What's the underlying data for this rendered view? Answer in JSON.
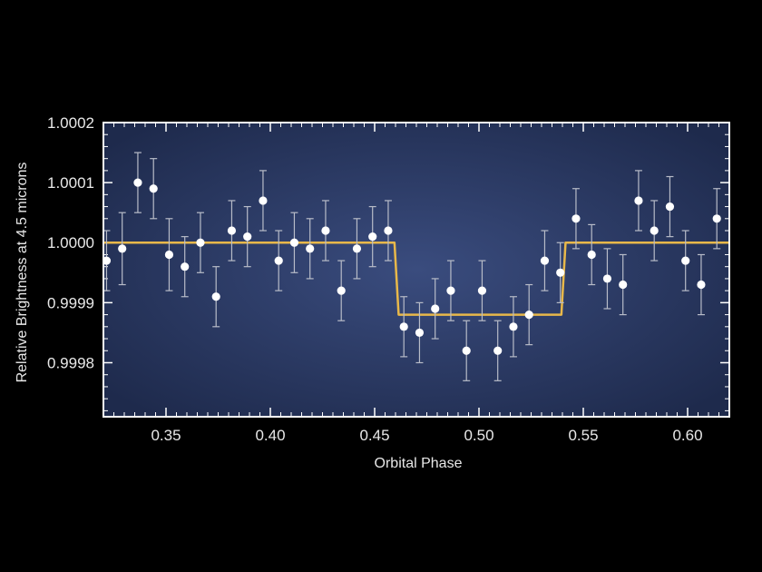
{
  "chart_data": {
    "type": "scatter",
    "xlabel": "Orbital Phase",
    "ylabel": "Relative Brightness at 4.5 microns",
    "xlim": [
      0.32,
      0.62
    ],
    "ylim": [
      0.99971,
      1.0002
    ],
    "x_ticks": [
      {
        "value": 0.35,
        "label": "0.35"
      },
      {
        "value": 0.4,
        "label": "0.40"
      },
      {
        "value": 0.45,
        "label": "0.45"
      },
      {
        "value": 0.5,
        "label": "0.50"
      },
      {
        "value": 0.55,
        "label": "0.55"
      },
      {
        "value": 0.6,
        "label": "0.60"
      }
    ],
    "y_ticks": [
      {
        "value": 0.9998,
        "label": "0.9998"
      },
      {
        "value": 0.9999,
        "label": "0.9999"
      },
      {
        "value": 1.0,
        "label": "1.0000"
      },
      {
        "value": 1.0001,
        "label": "1.0001"
      },
      {
        "value": 1.0002,
        "label": "1.0002"
      }
    ],
    "grid": false,
    "colors": {
      "background": "#000000",
      "plot_center": "#3a4c7e",
      "plot_edge": "#1e2a4c",
      "frame": "#ffffff",
      "points": "#ffffff",
      "error_bars": "#b8bcc8",
      "model": "#e8b84a"
    },
    "points": [
      {
        "x": 0.3215,
        "y": 0.99997,
        "err": 5e-05
      },
      {
        "x": 0.329,
        "y": 0.99999,
        "err": 6e-05
      },
      {
        "x": 0.3365,
        "y": 1.0001,
        "err": 5e-05
      },
      {
        "x": 0.344,
        "y": 1.00009,
        "err": 5e-05
      },
      {
        "x": 0.3515,
        "y": 0.99998,
        "err": 6e-05
      },
      {
        "x": 0.359,
        "y": 0.99996,
        "err": 5e-05
      },
      {
        "x": 0.3665,
        "y": 1.0,
        "err": 5e-05
      },
      {
        "x": 0.374,
        "y": 0.99991,
        "err": 5e-05
      },
      {
        "x": 0.3815,
        "y": 1.00002,
        "err": 5e-05
      },
      {
        "x": 0.389,
        "y": 1.00001,
        "err": 5e-05
      },
      {
        "x": 0.3965,
        "y": 1.00007,
        "err": 5e-05
      },
      {
        "x": 0.404,
        "y": 0.99997,
        "err": 5e-05
      },
      {
        "x": 0.4115,
        "y": 1.0,
        "err": 5e-05
      },
      {
        "x": 0.419,
        "y": 0.99999,
        "err": 5e-05
      },
      {
        "x": 0.4265,
        "y": 1.00002,
        "err": 5e-05
      },
      {
        "x": 0.434,
        "y": 0.99992,
        "err": 5e-05
      },
      {
        "x": 0.4415,
        "y": 0.99999,
        "err": 5e-05
      },
      {
        "x": 0.449,
        "y": 1.00001,
        "err": 5e-05
      },
      {
        "x": 0.4565,
        "y": 1.00002,
        "err": 5e-05
      },
      {
        "x": 0.464,
        "y": 0.99986,
        "err": 5e-05
      },
      {
        "x": 0.4715,
        "y": 0.99985,
        "err": 5e-05
      },
      {
        "x": 0.479,
        "y": 0.99989,
        "err": 5e-05
      },
      {
        "x": 0.4865,
        "y": 0.99992,
        "err": 5e-05
      },
      {
        "x": 0.494,
        "y": 0.99982,
        "err": 5e-05
      },
      {
        "x": 0.5015,
        "y": 0.99992,
        "err": 5e-05
      },
      {
        "x": 0.509,
        "y": 0.99982,
        "err": 5e-05
      },
      {
        "x": 0.5165,
        "y": 0.99986,
        "err": 5e-05
      },
      {
        "x": 0.524,
        "y": 0.99988,
        "err": 5e-05
      },
      {
        "x": 0.5315,
        "y": 0.99997,
        "err": 5e-05
      },
      {
        "x": 0.539,
        "y": 0.99995,
        "err": 5e-05
      },
      {
        "x": 0.5465,
        "y": 1.00004,
        "err": 5e-05
      },
      {
        "x": 0.554,
        "y": 0.99998,
        "err": 5e-05
      },
      {
        "x": 0.5615,
        "y": 0.99994,
        "err": 5e-05
      },
      {
        "x": 0.569,
        "y": 0.99993,
        "err": 5e-05
      },
      {
        "x": 0.5765,
        "y": 1.00007,
        "err": 5e-05
      },
      {
        "x": 0.584,
        "y": 1.00002,
        "err": 5e-05
      },
      {
        "x": 0.5915,
        "y": 1.00006,
        "err": 5e-05
      },
      {
        "x": 0.599,
        "y": 0.99997,
        "err": 5e-05
      },
      {
        "x": 0.6065,
        "y": 0.99993,
        "err": 5e-05
      },
      {
        "x": 0.614,
        "y": 1.00004,
        "err": 5e-05
      }
    ],
    "model": {
      "name": "",
      "x": [
        0.32,
        0.4595,
        0.4615,
        0.5395,
        0.5415,
        0.62
      ],
      "y": [
        1.0,
        1.0,
        0.99988,
        0.99988,
        1.0,
        1.0
      ]
    }
  }
}
